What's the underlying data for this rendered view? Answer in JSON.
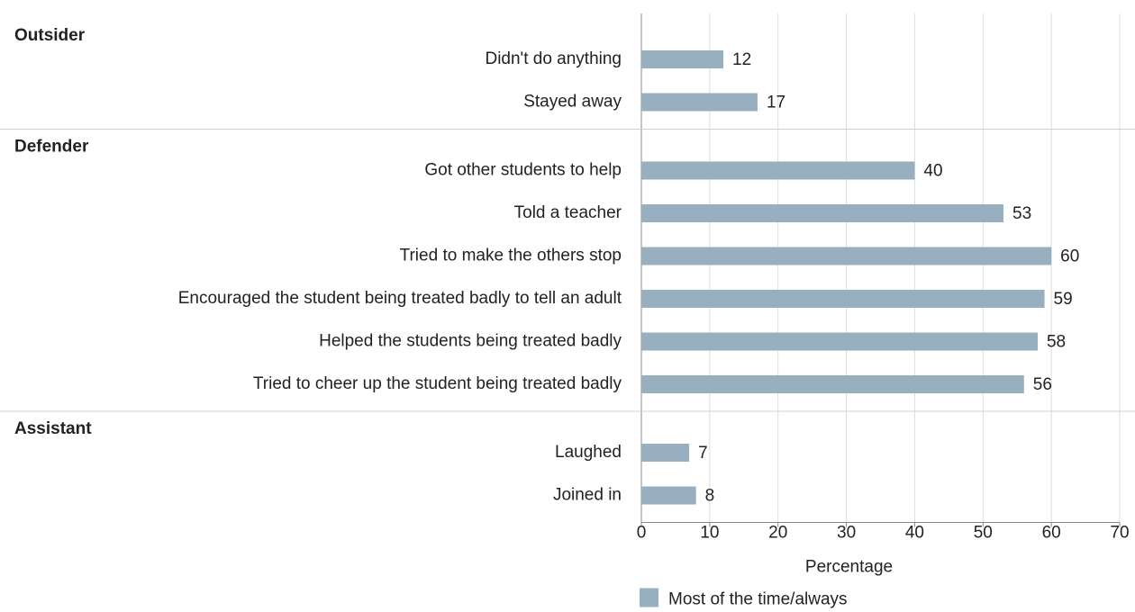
{
  "chart_data": {
    "type": "bar",
    "orientation": "horizontal",
    "series_name": "Most of the time/always",
    "color": "#97afbf",
    "xlabel": "Percentage",
    "xlim": [
      0,
      70
    ],
    "xticks": [
      0,
      10,
      20,
      30,
      40,
      50,
      60,
      70
    ],
    "grid": true,
    "groups": [
      {
        "name": "Outsider",
        "categories": [
          "Didn't do anything",
          "Stayed away"
        ],
        "values": [
          12,
          17
        ]
      },
      {
        "name": "Defender",
        "categories": [
          "Got other students to help",
          "Told a teacher",
          "Tried to make the others stop",
          "Encouraged the student being treated badly to tell an adult",
          "Helped the students being treated badly",
          "Tried to cheer up the student being treated badly"
        ],
        "values": [
          40,
          53,
          60,
          59,
          58,
          56
        ]
      },
      {
        "name": "Assistant",
        "categories": [
          "Laughed",
          "Joined in"
        ],
        "values": [
          7,
          8
        ]
      }
    ]
  }
}
